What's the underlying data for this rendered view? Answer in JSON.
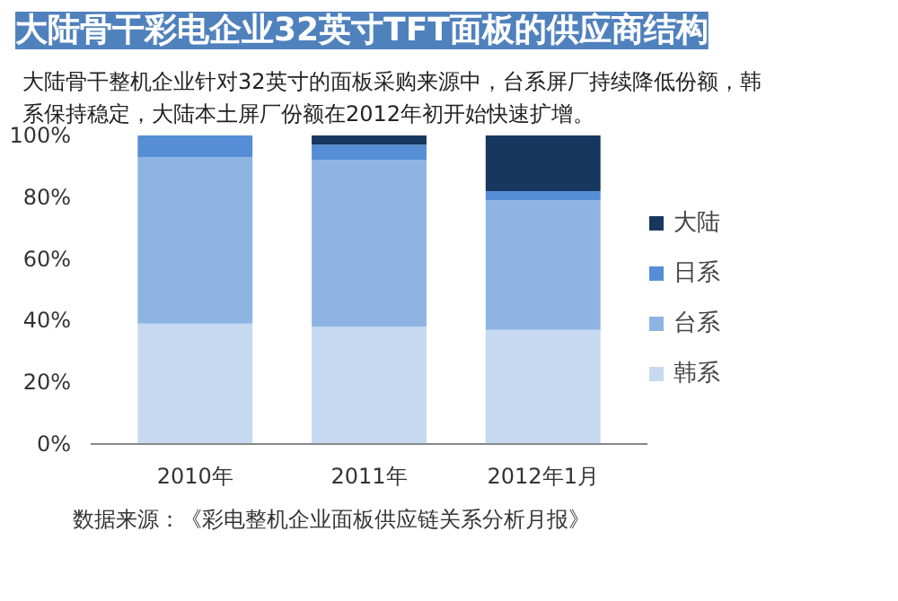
{
  "chart_data": {
    "type": "bar",
    "stacked": true,
    "title": "大陆骨干彩电企业32英寸TFT面板的供应商结构",
    "subtitle": "大陆骨干整机企业针对32英寸的面板采购来源中，台系屏厂持续降低份额，韩系保持稳定，大陆本土屏厂份额在2012年初开始快速扩增。",
    "annotations": [
      "数据来源：《彩电整机企业面板供应链关系分析月报》"
    ],
    "categories": [
      "2010年",
      "2011年",
      "2012年1月"
    ],
    "series": [
      {
        "name": "韩系",
        "color": "#c6d9f1",
        "values": [
          39,
          38,
          37
        ]
      },
      {
        "name": "台系",
        "color": "#8eb4e3",
        "values": [
          54,
          54,
          42
        ]
      },
      {
        "name": "日系",
        "color": "#558ed5",
        "values": [
          7,
          5,
          3
        ]
      },
      {
        "name": "大陆",
        "color": "#17375e",
        "values": [
          0,
          3,
          18
        ]
      }
    ],
    "ylim": [
      0,
      100
    ],
    "yticks": [
      {
        "value": 0,
        "label": "0%"
      },
      {
        "value": 20,
        "label": "20%"
      },
      {
        "value": 40,
        "label": "40%"
      },
      {
        "value": 60,
        "label": "60%"
      },
      {
        "value": 80,
        "label": "80%"
      },
      {
        "value": 100,
        "label": "100%"
      }
    ],
    "grid": false,
    "legend": "right"
  }
}
